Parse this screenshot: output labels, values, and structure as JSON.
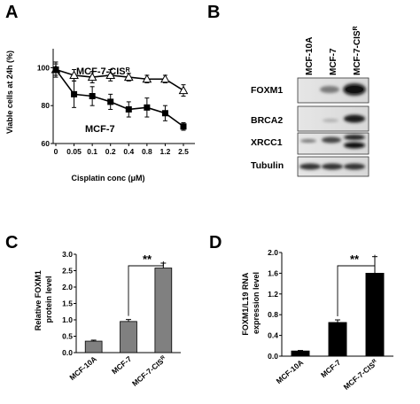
{
  "panels": {
    "A": "A",
    "B": "B",
    "C": "C",
    "D": "D"
  },
  "colors": {
    "black": "#000000",
    "bar_grey": "#808080",
    "bar_black": "#000000",
    "open_marker": "#ffffff"
  },
  "chart_data": [
    {
      "id": "A",
      "type": "line",
      "ylabel": "Viable cells at 24h (%)",
      "xlabel": "Cisplatin conc (μM)",
      "x_ticks": [
        "0",
        "0.05",
        "0.1",
        "0.2",
        "0.4",
        "0.8",
        "1.2",
        "2.5"
      ],
      "ylim": [
        60,
        110
      ],
      "y_ticks": [
        "60",
        "80",
        "100"
      ],
      "y_tick_values": [
        60,
        80,
        100
      ],
      "series": [
        {
          "name": "MCF-7-CIS",
          "name_sup": "R",
          "marker": "open-triangle",
          "values": [
            99,
            96,
            95,
            96,
            95,
            94,
            94,
            88
          ],
          "errors": [
            3,
            3,
            3,
            3,
            2,
            2,
            2,
            3
          ]
        },
        {
          "name": "MCF-7",
          "marker": "filled-square",
          "values": [
            99,
            86,
            85,
            82,
            78,
            79,
            76,
            69
          ],
          "errors": [
            4,
            7,
            5,
            4,
            4,
            5,
            4,
            2
          ]
        }
      ]
    },
    {
      "id": "C",
      "type": "bar",
      "ylabel_lines": [
        "Relative FOXM1",
        "protein level"
      ],
      "categories": [
        "MCF-10A",
        "MCF-7",
        "MCF-7-CIS"
      ],
      "category_sup": [
        "",
        "",
        "R"
      ],
      "values": [
        0.35,
        0.95,
        2.58
      ],
      "errors": [
        0.03,
        0.06,
        0.15
      ],
      "ylim": [
        0,
        3.0
      ],
      "y_ticks": [
        "0.0",
        "0.5",
        "1.0",
        "1.5",
        "2.0",
        "2.5",
        "3.0"
      ],
      "y_tick_values": [
        0,
        0.5,
        1.0,
        1.5,
        2.0,
        2.5,
        3.0
      ],
      "significance": "**"
    },
    {
      "id": "D",
      "type": "bar",
      "ylabel_lines": [
        "FOXM1/L19 RNA",
        "expression level"
      ],
      "categories": [
        "MCF-10A",
        "MCF-7",
        "MCF-7-CIS"
      ],
      "category_sup": [
        "",
        "",
        "R"
      ],
      "values": [
        0.1,
        0.65,
        1.6
      ],
      "errors": [
        0.01,
        0.05,
        0.32
      ],
      "ylim": [
        0,
        2.0
      ],
      "y_ticks": [
        "0.0",
        "0.4",
        "0.8",
        "1.2",
        "1.6",
        "2.0"
      ],
      "y_tick_values": [
        0,
        0.4,
        0.8,
        1.2,
        1.6,
        2.0
      ],
      "significance": "**"
    }
  ],
  "blot": {
    "lanes": [
      "MCF-10A",
      "MCF-7",
      "MCF-7-CIS"
    ],
    "lane_sup": [
      "",
      "",
      "R"
    ],
    "rows": [
      "FOXM1",
      "BRCA2",
      "XRCC1",
      "Tubulin"
    ]
  }
}
